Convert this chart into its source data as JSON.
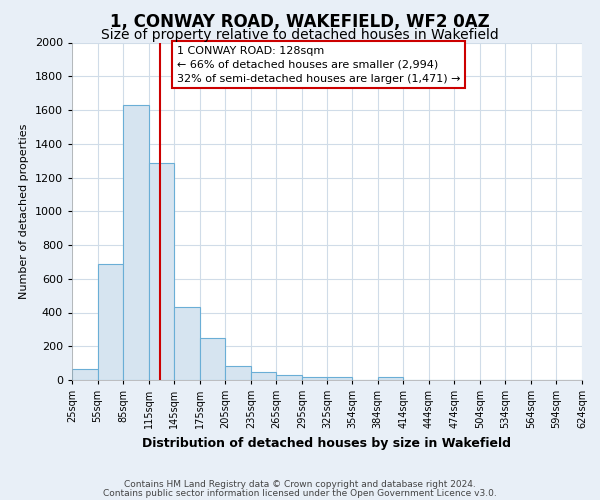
{
  "title": "1, CONWAY ROAD, WAKEFIELD, WF2 0AZ",
  "subtitle": "Size of property relative to detached houses in Wakefield",
  "xlabel": "Distribution of detached houses by size in Wakefield",
  "ylabel": "Number of detached properties",
  "footnote1": "Contains HM Land Registry data © Crown copyright and database right 2024.",
  "footnote2": "Contains public sector information licensed under the Open Government Licence v3.0.",
  "bar_left_edges": [
    25,
    55,
    85,
    115,
    145,
    175,
    205,
    235,
    265,
    295,
    325,
    354,
    384,
    414,
    444,
    474,
    504,
    534,
    564,
    594
  ],
  "bar_right_edges": [
    55,
    85,
    115,
    145,
    175,
    205,
    235,
    265,
    295,
    325,
    354,
    384,
    414,
    444,
    474,
    504,
    534,
    564,
    594,
    624
  ],
  "bar_heights": [
    65,
    690,
    1630,
    1285,
    435,
    250,
    85,
    50,
    30,
    20,
    15,
    0,
    20,
    0,
    0,
    0,
    0,
    0,
    0,
    0
  ],
  "bar_color": "#d6e4f0",
  "bar_edge_color": "#6aaed6",
  "property_size": 128,
  "vline_color": "#cc0000",
  "annotation_line1": "1 CONWAY ROAD: 128sqm",
  "annotation_line2": "← 66% of detached houses are smaller (2,994)",
  "annotation_line3": "32% of semi-detached houses are larger (1,471) →",
  "annotation_box_facecolor": "#ffffff",
  "annotation_box_edgecolor": "#cc0000",
  "ylim": [
    0,
    2000
  ],
  "yticks": [
    0,
    200,
    400,
    600,
    800,
    1000,
    1200,
    1400,
    1600,
    1800,
    2000
  ],
  "xtick_labels": [
    "25sqm",
    "55sqm",
    "85sqm",
    "115sqm",
    "145sqm",
    "175sqm",
    "205sqm",
    "235sqm",
    "265sqm",
    "295sqm",
    "325sqm",
    "354sqm",
    "384sqm",
    "414sqm",
    "444sqm",
    "474sqm",
    "504sqm",
    "534sqm",
    "564sqm",
    "594sqm",
    "624sqm"
  ],
  "xtick_positions": [
    25,
    55,
    85,
    115,
    145,
    175,
    205,
    235,
    265,
    295,
    325,
    354,
    384,
    414,
    444,
    474,
    504,
    534,
    564,
    594,
    624
  ],
  "fig_bg_color": "#e8eff7",
  "plot_bg_color": "#ffffff",
  "grid_color": "#d0dce8",
  "title_fontsize": 12,
  "subtitle_fontsize": 10,
  "xlabel_fontsize": 9,
  "ylabel_fontsize": 8,
  "tick_fontsize": 7,
  "footnote_fontsize": 6.5,
  "annotation_fontsize": 8
}
